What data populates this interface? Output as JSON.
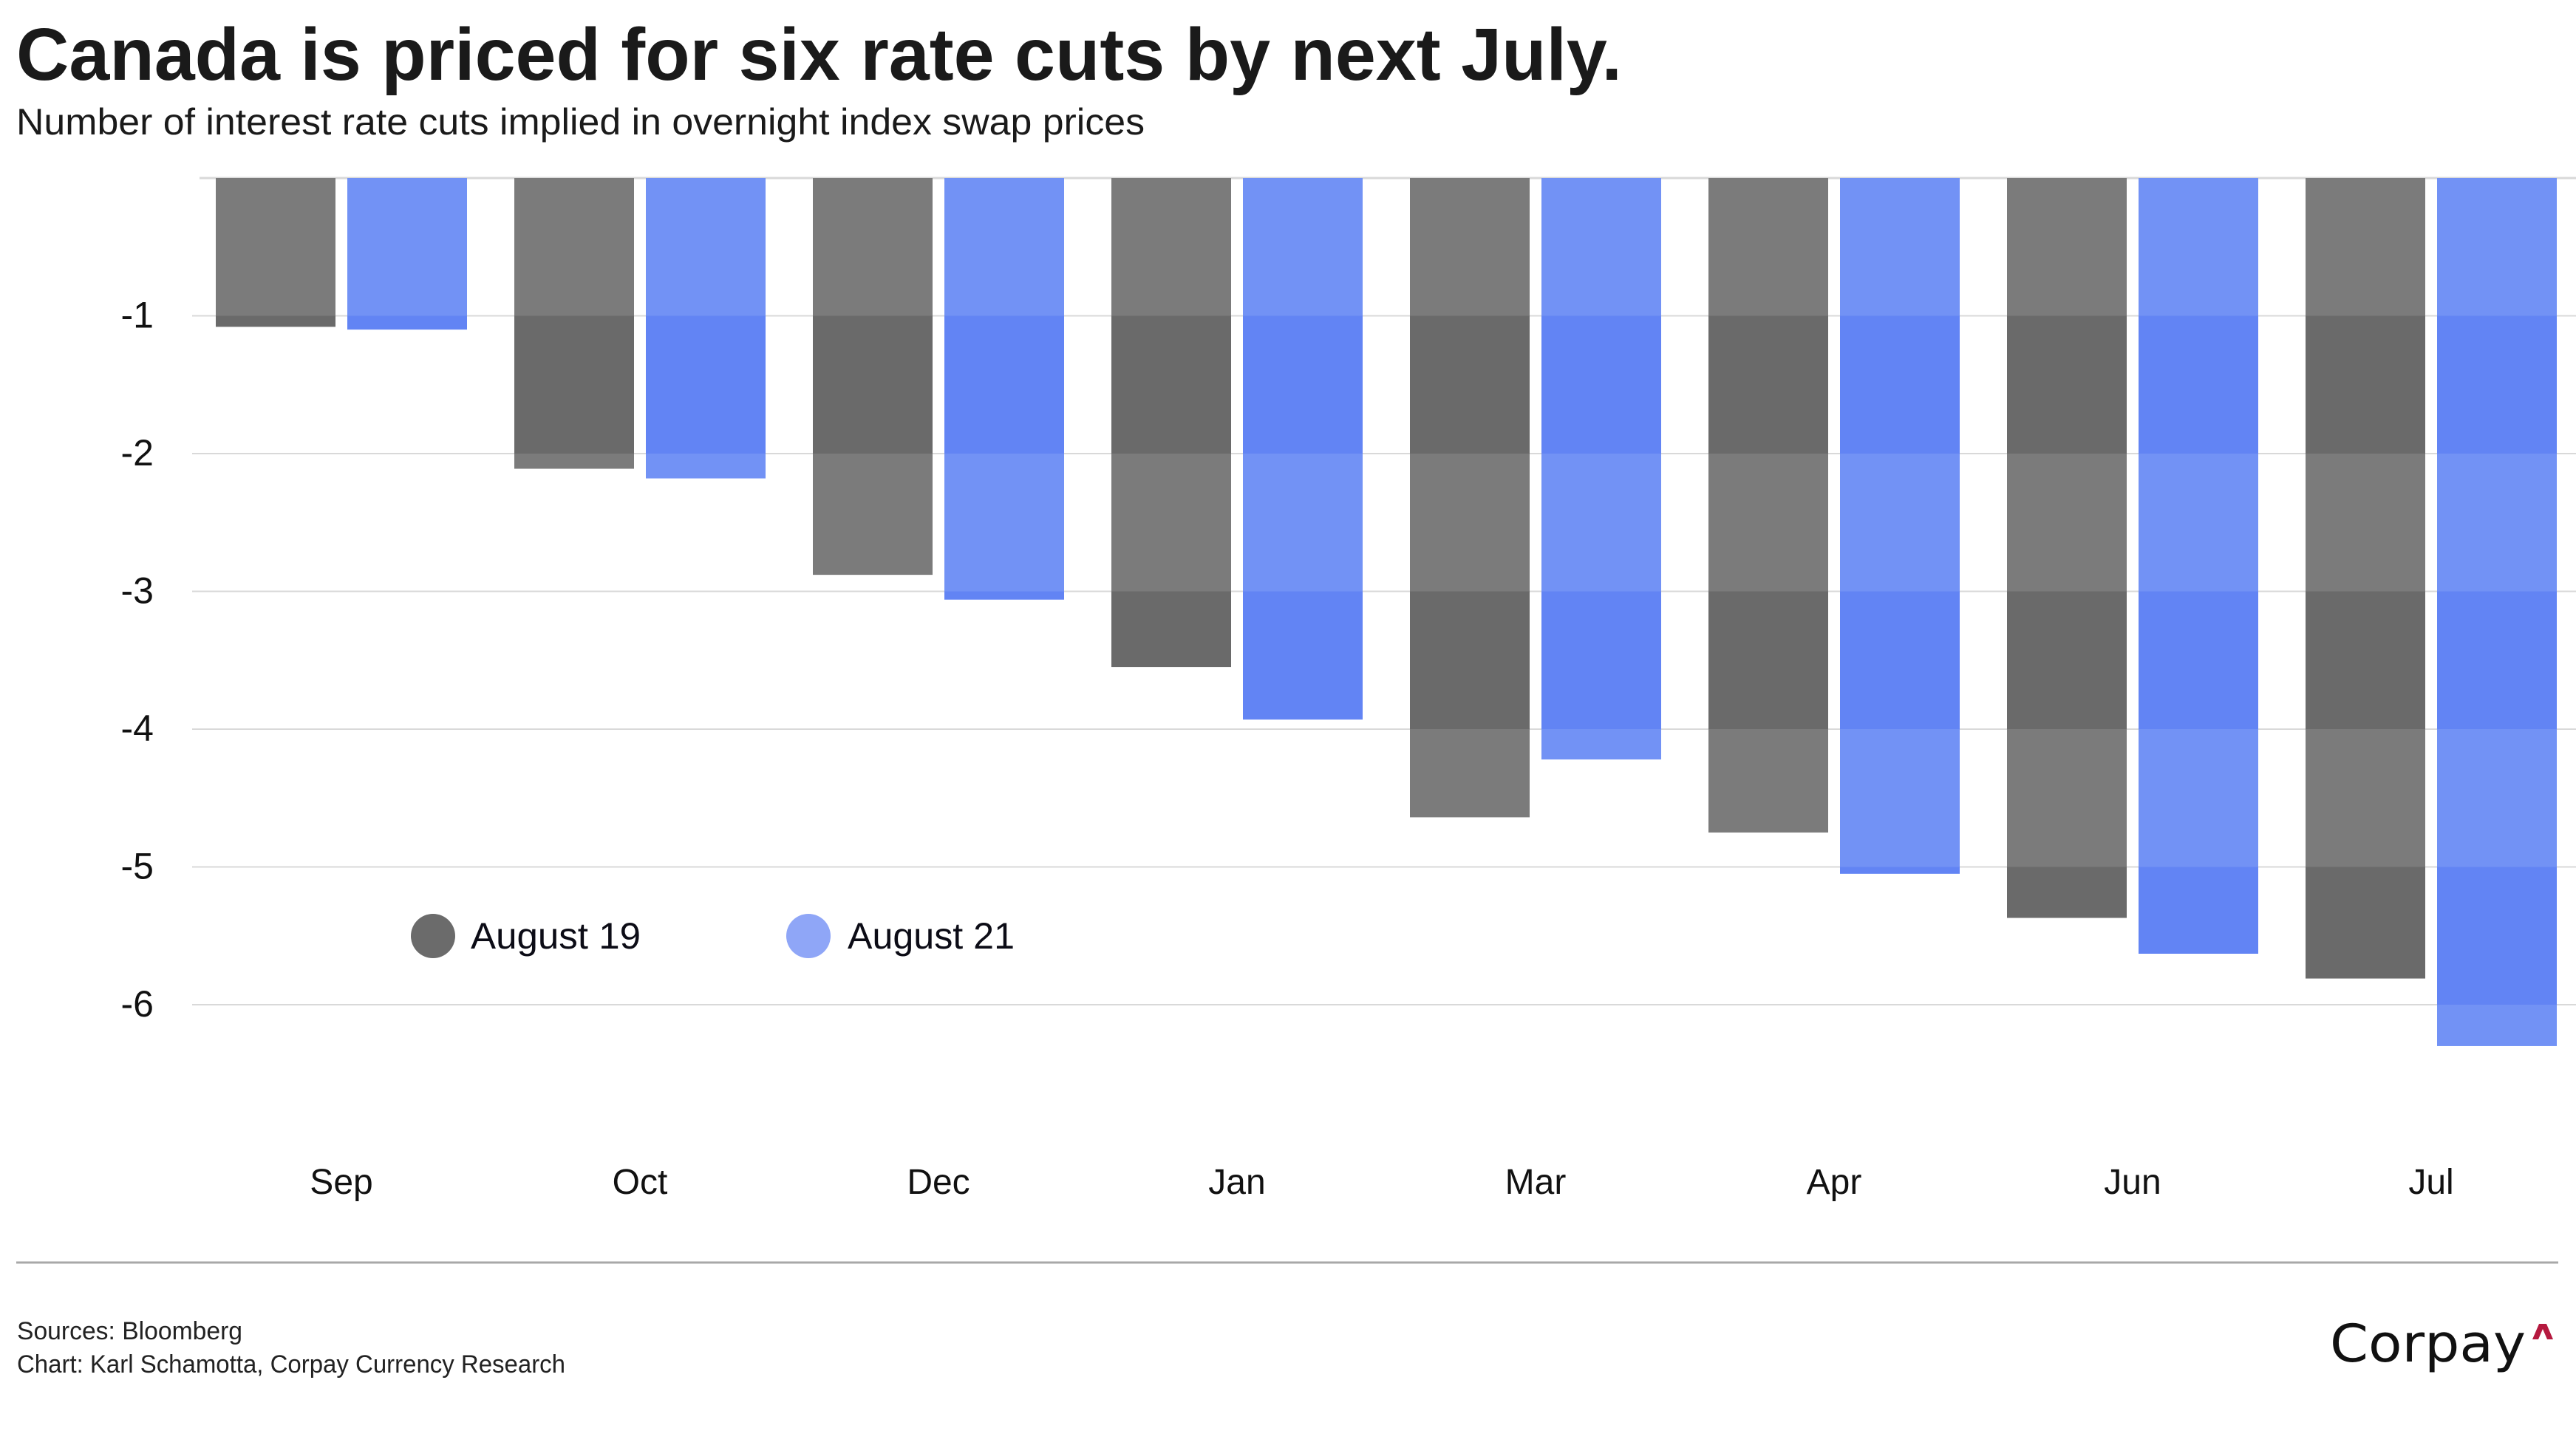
{
  "header": {
    "title": "Canada is priced for six rate cuts by next July.",
    "subtitle": "Number of interest rate cuts implied in overnight index swap prices"
  },
  "chart_data": {
    "type": "bar",
    "title": "Canada is priced for six rate cuts by next July.",
    "subtitle": "Number of interest rate cuts implied in overnight index swap prices",
    "xlabel": "",
    "ylabel": "",
    "categories": [
      "Sep",
      "Oct",
      "Dec",
      "Jan",
      "Mar",
      "Apr",
      "Jun",
      "Jul"
    ],
    "series": [
      {
        "name": "August 19",
        "color": "#7b7b7b",
        "color_alt": "#6a6a6a",
        "legend_color": "#6b6b6b",
        "values": [
          -1.08,
          -2.11,
          -2.88,
          -3.55,
          -4.64,
          -4.75,
          -5.37,
          -5.81
        ]
      },
      {
        "name": "August 21",
        "color": "#7292f5",
        "color_alt": "#6284f4",
        "legend_color": "#8fa6f7",
        "values": [
          -1.1,
          -2.18,
          -3.06,
          -3.93,
          -4.22,
          -5.05,
          -5.63,
          -6.3
        ]
      }
    ],
    "yticks": [
      -1,
      -2,
      -3,
      -4,
      -5,
      -6
    ],
    "ytick_labels": [
      "-1",
      "-2",
      "-3",
      "-4",
      "-5",
      "-6"
    ],
    "ylim": [
      -7,
      0
    ],
    "grid": true,
    "legend_position": "lower-left"
  },
  "footer": {
    "sources": "Sources: Bloomberg",
    "credit": "Chart: Karl Schamotta, Corpay Currency Research",
    "logo_text": "Corpay",
    "logo_accent_color": "#b5193f"
  }
}
